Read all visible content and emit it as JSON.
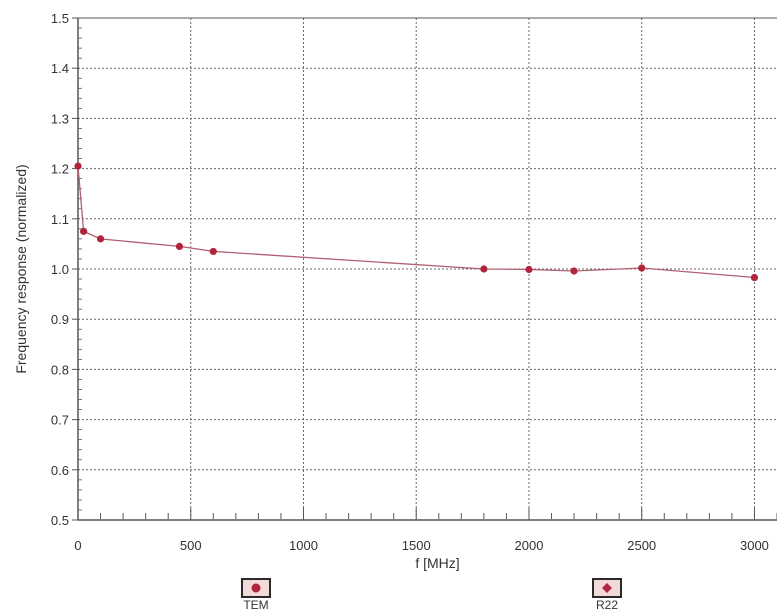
{
  "colors": {
    "series": "#b0243c",
    "line": "#b06070",
    "grid": "#666666",
    "axis": "#555555"
  },
  "legend": {
    "items": [
      {
        "label": "TEM",
        "icon": "circle-marker-icon"
      },
      {
        "label": "R22",
        "icon": "diamond-marker-icon"
      }
    ]
  },
  "chart_data": {
    "type": "line",
    "xlabel": "f [MHz]",
    "ylabel": "Frequency response (normalized)",
    "xlim": [
      0,
      3100
    ],
    "ylim": [
      0.5,
      1.5
    ],
    "xticks": [
      0,
      500,
      1000,
      1500,
      2000,
      2500,
      3000
    ],
    "yticks": [
      "0.5",
      "0.6",
      "0.7",
      "0.8",
      "0.9",
      "1.0",
      "1.1",
      "1.2",
      "1.3",
      "1.4",
      "1.5"
    ],
    "grid": true,
    "legend_position": "bottom",
    "series": [
      {
        "x": [
          0,
          25,
          100,
          450,
          600,
          1800,
          2000,
          2200,
          2500,
          3000
        ],
        "y": [
          1.205,
          1.075,
          1.06,
          1.045,
          1.035,
          1.0,
          0.999,
          0.996,
          1.002,
          0.983
        ]
      }
    ]
  }
}
